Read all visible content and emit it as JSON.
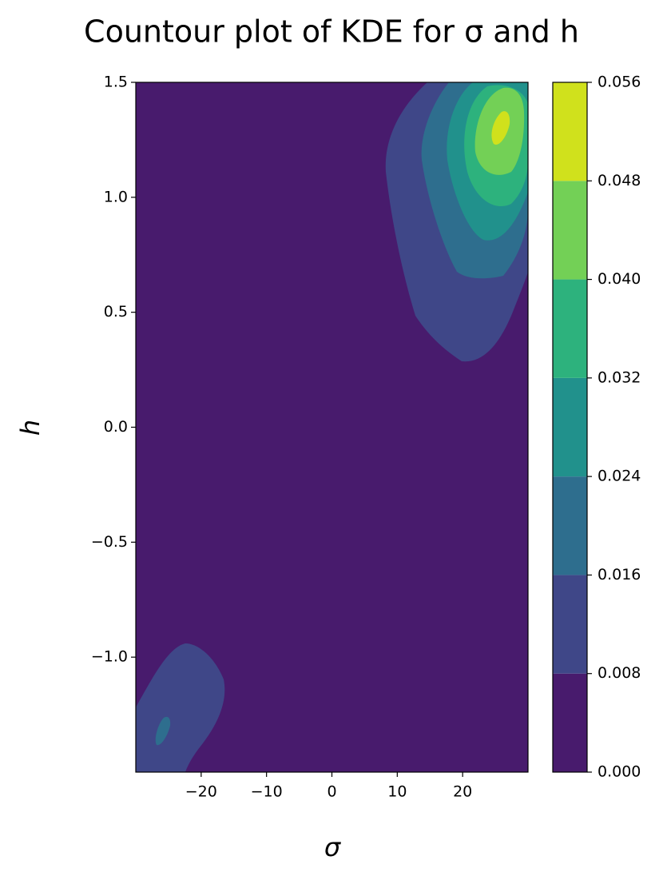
{
  "chart_data": {
    "type": "contour",
    "title": "Countour plot of KDE for σ and h",
    "x_label": "σ",
    "y_label": "h",
    "xlim": [
      -30,
      30
    ],
    "xticks": [
      {
        "value": -20,
        "label": "−20"
      },
      {
        "value": -10,
        "label": "−10"
      },
      0,
      10,
      20
    ],
    "ylim": [
      -1.5,
      1.5
    ],
    "yticks": [
      {
        "value": -1,
        "label": "−1.0"
      },
      {
        "value": -0.5,
        "label": "−0.5"
      },
      {
        "value": 0,
        "label": "0.0"
      },
      0.5,
      {
        "value": 1,
        "label": "1.0"
      },
      1.5
    ],
    "levels": [
      {
        "value": 0,
        "label": "0.000"
      },
      {
        "value": 0.008,
        "label": "0.008"
      },
      {
        "value": 0.016,
        "label": "0.016"
      },
      {
        "value": 0.024,
        "label": "0.024"
      },
      {
        "value": 0.032,
        "label": "0.032"
      },
      {
        "value": 0.04,
        "label": "0.040"
      },
      {
        "value": 0.048,
        "label": "0.048"
      },
      {
        "value": 0.056,
        "label": "0.056"
      }
    ],
    "colors": [
      "#481b6d",
      "#3f4788",
      "#2e6e8e",
      "#21918c",
      "#2db27d",
      "#73d056",
      "#d0e11c"
    ]
  }
}
